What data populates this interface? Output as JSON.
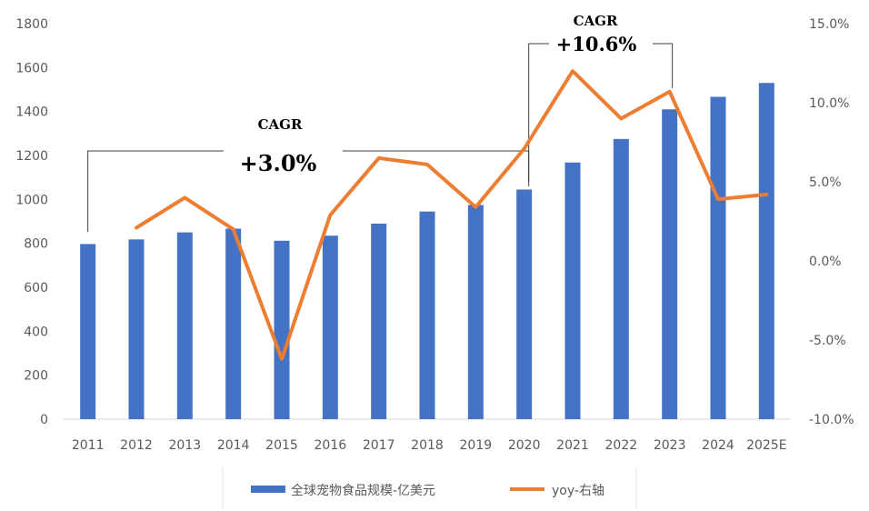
{
  "chart_data": {
    "type": "bar",
    "categories": [
      "2011",
      "2012",
      "2013",
      "2014",
      "2015",
      "2016",
      "2017",
      "2018",
      "2019",
      "2020",
      "2021",
      "2022",
      "2023",
      "2024",
      "2025E"
    ],
    "series": [
      {
        "name": "全球宠物食品规模-亿美元",
        "type": "bar",
        "axis": "left",
        "color": "#4472C4",
        "values": [
          797,
          818,
          850,
          867,
          812,
          835,
          890,
          945,
          975,
          1045,
          1168,
          1275,
          1410,
          1467,
          1530
        ]
      },
      {
        "name": "yoy-右轴",
        "type": "line",
        "axis": "right",
        "color": "#ED7D31",
        "values": [
          null,
          2.1,
          4.0,
          2.0,
          -6.2,
          2.9,
          6.5,
          6.1,
          3.4,
          7.1,
          12.0,
          9.0,
          10.7,
          3.9,
          4.2
        ]
      }
    ],
    "y_left": {
      "min": 0,
      "max": 1800,
      "ticks": [
        "0",
        "200",
        "400",
        "600",
        "800",
        "1000",
        "1200",
        "1400",
        "1600",
        "1800"
      ]
    },
    "y_right": {
      "min": -10,
      "max": 15,
      "ticks": [
        "-10.0%",
        "-5.0%",
        "0.0%",
        "5.0%",
        "10.0%",
        "15.0%"
      ]
    },
    "grid": false,
    "legend_position": "bottom",
    "annotations": [
      {
        "label": "CAGR",
        "value": "+3.0%",
        "from": "2011",
        "to": "2020"
      },
      {
        "label": "CAGR",
        "value": "+10.6%",
        "from": "2020",
        "to": "2023"
      }
    ]
  }
}
